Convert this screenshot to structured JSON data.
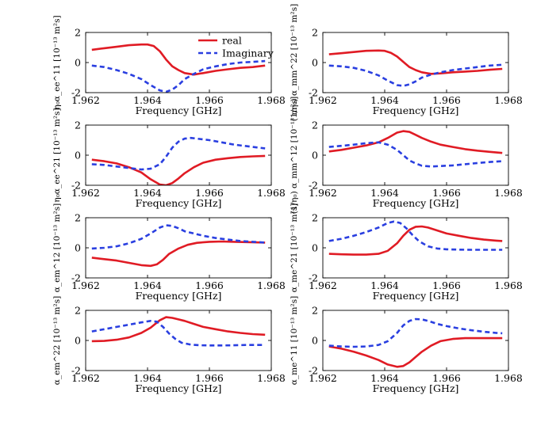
{
  "legend": {
    "placement": "top-right of first panel",
    "entries": [
      {
        "name": "real",
        "color": "#e01b24",
        "style": "solid"
      },
      {
        "name": "Imaginary",
        "color": "#2a3fe0",
        "style": "dashed"
      }
    ]
  },
  "chart_data": [
    {
      "type": "line",
      "xlabel": "Frequency [GHz]",
      "ylabel": "η₀α_ee^11  [10⁻¹³ m²s]",
      "xlim": [
        1.962,
        1.968
      ],
      "ylim": [
        -2,
        2
      ],
      "xticks": [
        "1.962",
        "1.964",
        "1.966",
        "1.968"
      ],
      "yticks": [
        "-2",
        "0",
        "2"
      ],
      "grid": false,
      "series": [
        {
          "name": "real",
          "color": "#e01b24",
          "dash": false,
          "x": [
            1.9622,
            1.9626,
            1.963,
            1.9634,
            1.9638,
            1.964,
            1.9642,
            1.9644,
            1.9646,
            1.9648,
            1.965,
            1.9652,
            1.9655,
            1.9658,
            1.9662,
            1.9666,
            1.967,
            1.9674,
            1.9678
          ],
          "y": [
            0.85,
            0.95,
            1.05,
            1.15,
            1.2,
            1.2,
            1.1,
            0.75,
            0.2,
            -0.25,
            -0.5,
            -0.7,
            -0.8,
            -0.7,
            -0.55,
            -0.45,
            -0.35,
            -0.3,
            -0.2
          ]
        },
        {
          "name": "Imaginary",
          "color": "#2a3fe0",
          "dash": true,
          "x": [
            1.9622,
            1.9626,
            1.963,
            1.9634,
            1.9638,
            1.9641,
            1.9644,
            1.9646,
            1.9648,
            1.965,
            1.9652,
            1.9655,
            1.9658,
            1.9662,
            1.9666,
            1.967,
            1.9674,
            1.9678
          ],
          "y": [
            -0.2,
            -0.3,
            -0.5,
            -0.75,
            -1.1,
            -1.5,
            -1.85,
            -1.95,
            -1.8,
            -1.5,
            -1.1,
            -0.75,
            -0.45,
            -0.25,
            -0.1,
            0.0,
            0.05,
            0.1
          ]
        }
      ]
    },
    {
      "type": "line",
      "xlabel": "Frequency [GHz]",
      "ylabel": "(1/η₀) α_mm^22  [10⁻¹³ m²s]",
      "xlim": [
        1.962,
        1.968
      ],
      "ylim": [
        -2,
        2
      ],
      "xticks": [
        "1.962",
        "1.964",
        "1.966",
        "1.968"
      ],
      "yticks": [
        "-2",
        "0",
        "2"
      ],
      "grid": false,
      "series": [
        {
          "name": "real",
          "color": "#e01b24",
          "dash": false,
          "x": [
            1.9622,
            1.9626,
            1.963,
            1.9634,
            1.9638,
            1.964,
            1.9642,
            1.9644,
            1.9646,
            1.9648,
            1.965,
            1.9652,
            1.9655,
            1.9658,
            1.9662,
            1.9666,
            1.967,
            1.9674,
            1.9678
          ],
          "y": [
            0.55,
            0.62,
            0.7,
            0.78,
            0.8,
            0.78,
            0.65,
            0.4,
            0.05,
            -0.3,
            -0.5,
            -0.65,
            -0.75,
            -0.72,
            -0.65,
            -0.6,
            -0.55,
            -0.48,
            -0.42
          ]
        },
        {
          "name": "Imaginary",
          "color": "#2a3fe0",
          "dash": true,
          "x": [
            1.9622,
            1.9626,
            1.963,
            1.9634,
            1.9638,
            1.9641,
            1.9644,
            1.9646,
            1.9648,
            1.965,
            1.9652,
            1.9655,
            1.9658,
            1.9662,
            1.9666,
            1.967,
            1.9674,
            1.9678
          ],
          "y": [
            -0.2,
            -0.25,
            -0.35,
            -0.55,
            -0.85,
            -1.2,
            -1.5,
            -1.55,
            -1.45,
            -1.25,
            -1.0,
            -0.8,
            -0.65,
            -0.5,
            -0.4,
            -0.3,
            -0.2,
            -0.15
          ]
        }
      ]
    },
    {
      "type": "line",
      "xlabel": "Frequency [GHz]",
      "ylabel": "η₀α_ee^21  [10⁻¹³ m²s]",
      "xlim": [
        1.962,
        1.968
      ],
      "ylim": [
        -2,
        2
      ],
      "xticks": [
        "1.962",
        "1.964",
        "1.966",
        "1.968"
      ],
      "yticks": [
        "-2",
        "0",
        "2"
      ],
      "grid": false,
      "series": [
        {
          "name": "real",
          "color": "#e01b24",
          "dash": false,
          "x": [
            1.9622,
            1.9626,
            1.963,
            1.9634,
            1.9638,
            1.9641,
            1.9644,
            1.9646,
            1.9648,
            1.965,
            1.9652,
            1.9655,
            1.9658,
            1.9662,
            1.9666,
            1.967,
            1.9674,
            1.9678
          ],
          "y": [
            -0.3,
            -0.4,
            -0.55,
            -0.8,
            -1.15,
            -1.6,
            -1.95,
            -2.0,
            -1.85,
            -1.55,
            -1.2,
            -0.8,
            -0.5,
            -0.3,
            -0.2,
            -0.12,
            -0.08,
            -0.05
          ]
        },
        {
          "name": "Imaginary",
          "color": "#2a3fe0",
          "dash": true,
          "x": [
            1.9622,
            1.9626,
            1.963,
            1.9634,
            1.9638,
            1.9641,
            1.9644,
            1.9646,
            1.9648,
            1.965,
            1.9652,
            1.9654,
            1.9656,
            1.966,
            1.9664,
            1.9668,
            1.9672,
            1.9676,
            1.9678
          ],
          "y": [
            -0.6,
            -0.65,
            -0.75,
            -0.85,
            -0.95,
            -0.9,
            -0.6,
            -0.1,
            0.5,
            0.9,
            1.1,
            1.15,
            1.1,
            1.0,
            0.85,
            0.7,
            0.6,
            0.5,
            0.45
          ]
        }
      ]
    },
    {
      "type": "line",
      "xlabel": "Frequency [GHz]",
      "ylabel": "(1/η₀) α_mm^12  [10⁻¹³ m²s]",
      "xlim": [
        1.962,
        1.968
      ],
      "ylim": [
        -2,
        2
      ],
      "xticks": [
        "1.962",
        "1.964",
        "1.966",
        "1.968"
      ],
      "yticks": [
        "-2",
        "0",
        "2"
      ],
      "grid": false,
      "series": [
        {
          "name": "real",
          "color": "#e01b24",
          "dash": false,
          "x": [
            1.9622,
            1.9626,
            1.963,
            1.9634,
            1.9638,
            1.9641,
            1.9644,
            1.9646,
            1.9648,
            1.965,
            1.9652,
            1.9655,
            1.9658,
            1.9662,
            1.9666,
            1.967,
            1.9674,
            1.9678
          ],
          "y": [
            0.25,
            0.35,
            0.5,
            0.65,
            0.85,
            1.15,
            1.5,
            1.6,
            1.55,
            1.35,
            1.15,
            0.9,
            0.7,
            0.55,
            0.4,
            0.3,
            0.22,
            0.15
          ]
        },
        {
          "name": "Imaginary",
          "color": "#2a3fe0",
          "dash": true,
          "x": [
            1.9622,
            1.9626,
            1.963,
            1.9634,
            1.9638,
            1.9641,
            1.9644,
            1.9646,
            1.9648,
            1.965,
            1.9652,
            1.9655,
            1.9658,
            1.9662,
            1.9666,
            1.967,
            1.9674,
            1.9678
          ],
          "y": [
            0.55,
            0.62,
            0.7,
            0.8,
            0.85,
            0.7,
            0.35,
            0.0,
            -0.35,
            -0.55,
            -0.7,
            -0.75,
            -0.72,
            -0.68,
            -0.6,
            -0.52,
            -0.45,
            -0.4
          ]
        }
      ]
    },
    {
      "type": "line",
      "xlabel": "Frequency [GHz]",
      "ylabel": "α_em^12  [10⁻¹³ m²s]",
      "xlim": [
        1.962,
        1.968
      ],
      "ylim": [
        -2,
        2
      ],
      "xticks": [
        "1.962",
        "1.964",
        "1.966",
        "1.968"
      ],
      "yticks": [
        "-2",
        "0",
        "2"
      ],
      "grid": false,
      "series": [
        {
          "name": "real",
          "color": "#e01b24",
          "dash": false,
          "x": [
            1.9622,
            1.9626,
            1.963,
            1.9634,
            1.9638,
            1.9641,
            1.9643,
            1.9645,
            1.9647,
            1.965,
            1.9653,
            1.9656,
            1.966,
            1.9664,
            1.9668,
            1.9672,
            1.9676,
            1.9678
          ],
          "y": [
            -0.65,
            -0.75,
            -0.85,
            -1.0,
            -1.15,
            -1.2,
            -1.1,
            -0.8,
            -0.4,
            -0.05,
            0.2,
            0.33,
            0.4,
            0.42,
            0.4,
            0.38,
            0.36,
            0.35
          ]
        },
        {
          "name": "Imaginary",
          "color": "#2a3fe0",
          "dash": true,
          "x": [
            1.9622,
            1.9626,
            1.963,
            1.9634,
            1.9638,
            1.9641,
            1.9644,
            1.9646,
            1.9648,
            1.965,
            1.9652,
            1.9655,
            1.9658,
            1.9662,
            1.9666,
            1.967,
            1.9674,
            1.9678
          ],
          "y": [
            -0.05,
            0.0,
            0.1,
            0.3,
            0.6,
            0.95,
            1.35,
            1.5,
            1.45,
            1.3,
            1.1,
            0.95,
            0.8,
            0.65,
            0.55,
            0.45,
            0.4,
            0.35
          ]
        }
      ]
    },
    {
      "type": "line",
      "xlabel": "Frequency [GHz]",
      "ylabel": "α_me^21  [10⁻¹³ m²s]",
      "xlim": [
        1.962,
        1.968
      ],
      "ylim": [
        -2,
        2
      ],
      "xticks": [
        "1.962",
        "1.964",
        "1.966",
        "1.968"
      ],
      "yticks": [
        "-2",
        "0",
        "2"
      ],
      "grid": false,
      "series": [
        {
          "name": "real",
          "color": "#e01b24",
          "dash": false,
          "x": [
            1.9622,
            1.9626,
            1.963,
            1.9634,
            1.9638,
            1.9641,
            1.9644,
            1.9646,
            1.9648,
            1.965,
            1.9652,
            1.9654,
            1.9657,
            1.966,
            1.9664,
            1.9668,
            1.9672,
            1.9676,
            1.9678
          ],
          "y": [
            -0.4,
            -0.43,
            -0.45,
            -0.45,
            -0.4,
            -0.2,
            0.3,
            0.8,
            1.2,
            1.4,
            1.42,
            1.35,
            1.15,
            0.95,
            0.8,
            0.65,
            0.55,
            0.48,
            0.45
          ]
        },
        {
          "name": "Imaginary",
          "color": "#2a3fe0",
          "dash": true,
          "x": [
            1.9622,
            1.9626,
            1.963,
            1.9634,
            1.9638,
            1.9641,
            1.9643,
            1.9645,
            1.9647,
            1.9649,
            1.9651,
            1.9654,
            1.9657,
            1.966,
            1.9664,
            1.9668,
            1.9672,
            1.9676,
            1.9678
          ],
          "y": [
            0.45,
            0.6,
            0.8,
            1.05,
            1.35,
            1.65,
            1.75,
            1.65,
            1.3,
            0.85,
            0.45,
            0.1,
            -0.05,
            -0.1,
            -0.12,
            -0.13,
            -0.13,
            -0.13,
            -0.13
          ]
        }
      ]
    },
    {
      "type": "line",
      "xlabel": "Frequency [GHz]",
      "ylabel": "α_em^22  [10⁻¹³ m²s]",
      "xlim": [
        1.962,
        1.968
      ],
      "ylim": [
        -2,
        2
      ],
      "xticks": [
        "1.962",
        "1.964",
        "1.966",
        "1.968"
      ],
      "yticks": [
        "-2",
        "0",
        "2"
      ],
      "grid": false,
      "series": [
        {
          "name": "real",
          "color": "#e01b24",
          "dash": false,
          "x": [
            1.9622,
            1.9626,
            1.963,
            1.9634,
            1.9638,
            1.9641,
            1.9644,
            1.9646,
            1.9648,
            1.965,
            1.9652,
            1.9655,
            1.9658,
            1.9662,
            1.9666,
            1.967,
            1.9674,
            1.9678
          ],
          "y": [
            -0.05,
            -0.03,
            0.05,
            0.2,
            0.5,
            0.85,
            1.35,
            1.55,
            1.5,
            1.4,
            1.3,
            1.1,
            0.9,
            0.75,
            0.6,
            0.5,
            0.42,
            0.38
          ]
        },
        {
          "name": "Imaginary",
          "color": "#2a3fe0",
          "dash": true,
          "x": [
            1.9622,
            1.9626,
            1.963,
            1.9634,
            1.9638,
            1.9641,
            1.9643,
            1.9645,
            1.9647,
            1.9649,
            1.9651,
            1.9654,
            1.9657,
            1.966,
            1.9664,
            1.9668,
            1.9672,
            1.9676,
            1.9678
          ],
          "y": [
            0.6,
            0.75,
            0.9,
            1.05,
            1.2,
            1.3,
            1.25,
            0.9,
            0.45,
            0.1,
            -0.15,
            -0.28,
            -0.32,
            -0.33,
            -0.33,
            -0.32,
            -0.3,
            -0.3,
            -0.3
          ]
        }
      ]
    },
    {
      "type": "line",
      "xlabel": "Frequency [GHz]",
      "ylabel": "α_me^11  [10⁻¹³ m²s]",
      "xlim": [
        1.962,
        1.968
      ],
      "ylim": [
        -2,
        2
      ],
      "xticks": [
        "1.962",
        "1.964",
        "1.966",
        "1.968"
      ],
      "yticks": [
        "-2",
        "0",
        "2"
      ],
      "grid": false,
      "series": [
        {
          "name": "real",
          "color": "#e01b24",
          "dash": false,
          "x": [
            1.9622,
            1.9626,
            1.963,
            1.9634,
            1.9638,
            1.9641,
            1.9644,
            1.9646,
            1.9648,
            1.965,
            1.9652,
            1.9655,
            1.9658,
            1.9662,
            1.9666,
            1.967,
            1.9674,
            1.9678
          ],
          "y": [
            -0.4,
            -0.55,
            -0.75,
            -1.0,
            -1.3,
            -1.6,
            -1.75,
            -1.7,
            -1.45,
            -1.1,
            -0.75,
            -0.35,
            -0.05,
            0.1,
            0.15,
            0.15,
            0.15,
            0.15
          ]
        },
        {
          "name": "Imaginary",
          "color": "#2a3fe0",
          "dash": true,
          "x": [
            1.9622,
            1.9626,
            1.963,
            1.9634,
            1.9638,
            1.9641,
            1.9644,
            1.9646,
            1.9648,
            1.965,
            1.9652,
            1.9654,
            1.9657,
            1.966,
            1.9664,
            1.9668,
            1.9672,
            1.9676,
            1.9678
          ],
          "y": [
            -0.35,
            -0.4,
            -0.42,
            -0.4,
            -0.3,
            -0.05,
            0.5,
            1.0,
            1.3,
            1.42,
            1.4,
            1.3,
            1.1,
            0.95,
            0.8,
            0.68,
            0.58,
            0.5,
            0.48
          ]
        }
      ]
    }
  ]
}
